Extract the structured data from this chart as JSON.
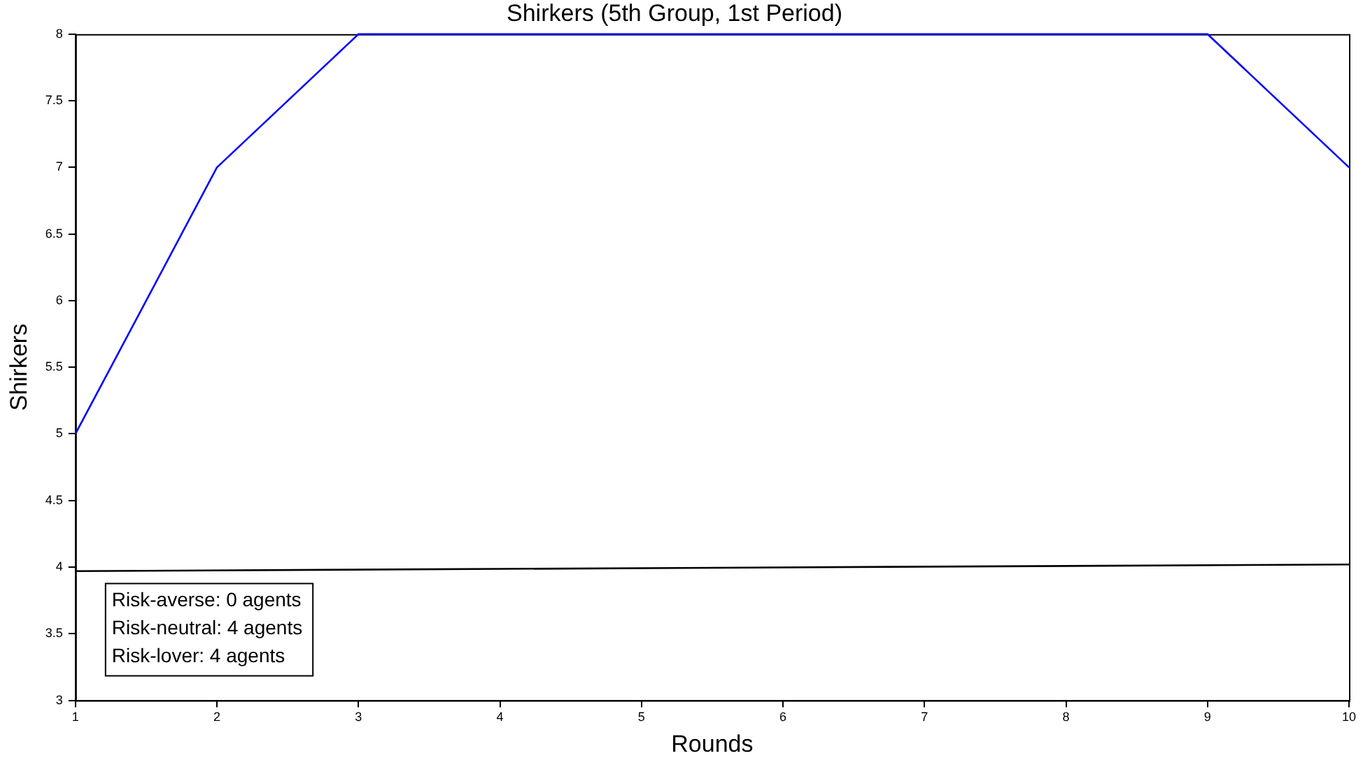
{
  "chart_data": {
    "type": "line",
    "title": "Shirkers (5th Group, 1st Period)",
    "xlabel": "Rounds",
    "ylabel": "Shirkers",
    "x": [
      1,
      2,
      3,
      4,
      5,
      6,
      7,
      8,
      9,
      10
    ],
    "series": [
      {
        "color": "#0000ff",
        "values": [
          5,
          7,
          8,
          8,
          8,
          8,
          8,
          8,
          8,
          7
        ]
      },
      {
        "color": "#000000",
        "x": [
          1,
          10
        ],
        "values": [
          3.97,
          4.02
        ]
      }
    ],
    "xlim": [
      1,
      10
    ],
    "xticks": [
      1,
      2,
      3,
      4,
      5,
      6,
      7,
      8,
      9,
      10
    ],
    "ylim": [
      3,
      8
    ],
    "yticks": [
      3,
      3.5,
      4,
      4.5,
      5,
      5.5,
      6,
      6.5,
      7,
      7.5,
      8
    ],
    "annotations": [
      "Risk-averse: 0 agents",
      "Risk-neutral: 4 agents",
      "Risk-lover: 4 agents"
    ],
    "legend": false,
    "marker": "none",
    "line_style": "solid"
  }
}
